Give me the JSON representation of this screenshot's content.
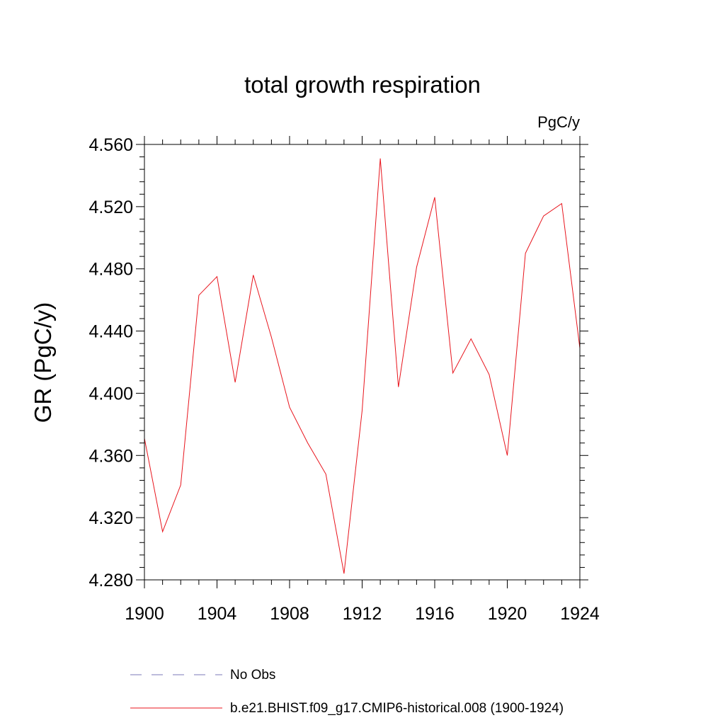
{
  "chart_data": {
    "type": "line",
    "title": "total growth respiration",
    "units_label": "PgC/y",
    "xlabel": "",
    "ylabel": "GR  (PgC/y)",
    "xlim": [
      1900,
      1924
    ],
    "ylim": [
      4.28,
      4.56
    ],
    "x_ticks": [
      1900,
      1904,
      1908,
      1912,
      1916,
      1920,
      1924
    ],
    "x_tick_labels": [
      "1900",
      "1904",
      "1908",
      "1912",
      "1916",
      "1920",
      "1924"
    ],
    "y_ticks": [
      4.28,
      4.32,
      4.36,
      4.4,
      4.44,
      4.48,
      4.52,
      4.56
    ],
    "y_tick_labels": [
      "4.280",
      "4.320",
      "4.360",
      "4.400",
      "4.440",
      "4.480",
      "4.520",
      "4.560"
    ],
    "grid": false,
    "legend_position": "bottom",
    "series": [
      {
        "name": "b.e21.BHIST.f09_g17.CMIP6-historical.008 (1900-1924)",
        "color": "#e8141c",
        "style": "solid",
        "x": [
          1900,
          1901,
          1902,
          1903,
          1904,
          1905,
          1906,
          1907,
          1908,
          1909,
          1910,
          1911,
          1912,
          1913,
          1914,
          1915,
          1916,
          1917,
          1918,
          1919,
          1920,
          1921,
          1922,
          1923,
          1924
        ],
        "values": [
          4.371,
          4.311,
          4.341,
          4.463,
          4.475,
          4.407,
          4.476,
          4.436,
          4.391,
          4.368,
          4.348,
          4.284,
          4.389,
          4.551,
          4.404,
          4.481,
          4.526,
          4.413,
          4.435,
          4.412,
          4.36,
          4.49,
          4.514,
          4.522,
          4.429
        ]
      }
    ],
    "legend": [
      {
        "label": "No Obs",
        "color": "#7b78b8",
        "style": "dashed"
      },
      {
        "label": "b.e21.BHIST.f09_g17.CMIP6-historical.008 (1900-1924)",
        "color": "#e8141c",
        "style": "solid"
      }
    ]
  }
}
